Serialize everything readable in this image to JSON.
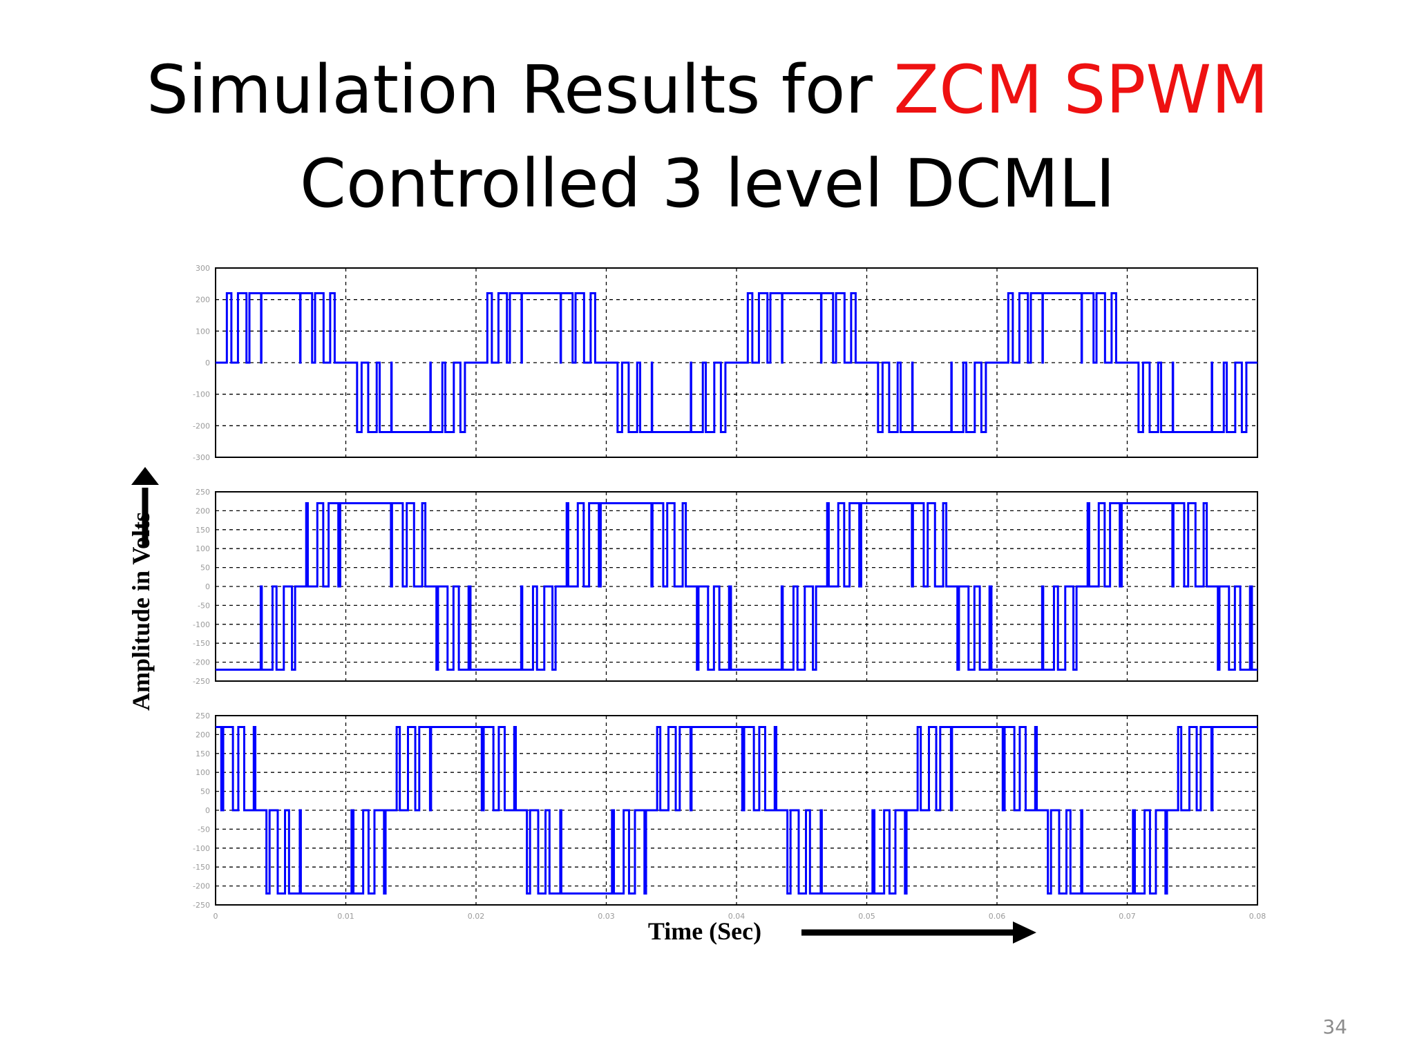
{
  "slide": {
    "title_part1": "Simulation Results for ",
    "title_highlight": "ZCM SPWM",
    "title_line2": "Controlled 3 level DCMLI",
    "page_number": "34",
    "colors": {
      "title": "#000000",
      "highlight": "#ee1111",
      "trace": "#0000ff",
      "grid": "#000000",
      "ticks": "#9a9a9a"
    }
  },
  "chart_data": {
    "type": "line",
    "xlabel": "Time (Sec)",
    "ylabel": "Amplitude in Volts",
    "xlim": [
      0,
      0.08
    ],
    "x_ticks": [
      "0",
      "0.01",
      "0.02",
      "0.03",
      "0.04",
      "0.05",
      "0.06",
      "0.07",
      "0.08"
    ],
    "grid": true,
    "fundamental_frequency_hz": 50,
    "level_volts": 220,
    "subplots": [
      {
        "ylim": [
          -300,
          300
        ],
        "y_ticks": [
          "300",
          "200",
          "100",
          "0",
          "-100",
          "-200",
          "-300"
        ],
        "phase_offset_deg": 0,
        "levels": [
          -220,
          0,
          220
        ]
      },
      {
        "ylim": [
          -250,
          250
        ],
        "y_ticks": [
          "250",
          "200",
          "150",
          "100",
          "50",
          "0",
          "-50",
          "-100",
          "-150",
          "-200",
          "-250"
        ],
        "phase_offset_deg": 120,
        "levels": [
          -220,
          0,
          220
        ]
      },
      {
        "ylim": [
          -250,
          250
        ],
        "y_ticks": [
          "250",
          "200",
          "150",
          "100",
          "50",
          "0",
          "-50",
          "-100",
          "-150",
          "-200",
          "-250"
        ],
        "phase_offset_deg": -120,
        "levels": [
          -220,
          0,
          220
        ]
      }
    ]
  }
}
